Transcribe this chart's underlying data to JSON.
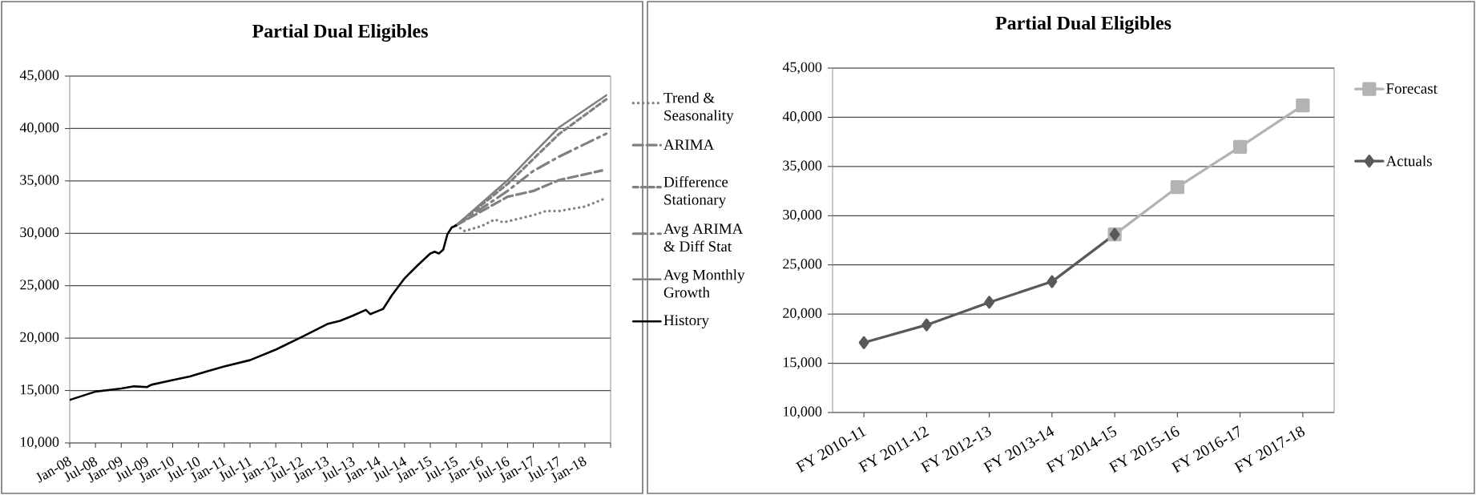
{
  "chart_data": [
    {
      "type": "line",
      "title": "Partial Dual Eligibles",
      "xlim": [
        "2008-01",
        "2018-07"
      ],
      "xticks": [
        {
          "value": "2008-01",
          "label": "Jan-08"
        },
        {
          "value": "2008-07",
          "label": "Jul-08"
        },
        {
          "value": "2009-01",
          "label": "Jan-09"
        },
        {
          "value": "2009-07",
          "label": "Jul-09"
        },
        {
          "value": "2010-01",
          "label": "Jan-10"
        },
        {
          "value": "2010-07",
          "label": "Jul-10"
        },
        {
          "value": "2011-01",
          "label": "Jan-11"
        },
        {
          "value": "2011-07",
          "label": "Jul-11"
        },
        {
          "value": "2012-01",
          "label": "Jan-12"
        },
        {
          "value": "2012-07",
          "label": "Jul-12"
        },
        {
          "value": "2013-01",
          "label": "Jan-13"
        },
        {
          "value": "2013-07",
          "label": "Jul-13"
        },
        {
          "value": "2014-01",
          "label": "Jan-14"
        },
        {
          "value": "2014-07",
          "label": "Jul-14"
        },
        {
          "value": "2015-01",
          "label": "Jan-15"
        },
        {
          "value": "2015-07",
          "label": "Jul-15"
        },
        {
          "value": "2016-01",
          "label": "Jan-16"
        },
        {
          "value": "2016-07",
          "label": "Jul-16"
        },
        {
          "value": "2017-01",
          "label": "Jan-17"
        },
        {
          "value": "2017-07",
          "label": "Jul-17"
        },
        {
          "value": "2018-01",
          "label": "Jan-18"
        },
        {
          "value": "2018-07",
          "label": null
        }
      ],
      "ylim": [
        10000,
        45000
      ],
      "yticks": [
        {
          "value": 10000,
          "label": "10,000"
        },
        {
          "value": 15000,
          "label": "15,000"
        },
        {
          "value": 20000,
          "label": "20,000"
        },
        {
          "value": 25000,
          "label": "25,000"
        },
        {
          "value": 30000,
          "label": "30,000"
        },
        {
          "value": 35000,
          "label": "35,000"
        },
        {
          "value": 40000,
          "label": "40,000"
        },
        {
          "value": 45000,
          "label": "45,000"
        }
      ],
      "grid": "y",
      "legend": "right",
      "series": [
        {
          "name": "Trend & Seasonality",
          "color": "#808080",
          "line_style": "dotted",
          "x": [
            "2015-07",
            "2015-09",
            "2016-01",
            "2016-04",
            "2016-06",
            "2017-01",
            "2017-04",
            "2017-07",
            "2018-01",
            "2018-06"
          ],
          "values": [
            30750,
            30220,
            30700,
            31320,
            31040,
            31730,
            32130,
            32130,
            32550,
            33370
          ]
        },
        {
          "name": "ARIMA",
          "color": "#808080",
          "line_style": "dashed",
          "x": [
            "2015-07",
            "2016-07",
            "2017-01",
            "2017-07",
            "2018-05"
          ],
          "values": [
            30750,
            33490,
            34040,
            35080,
            35990
          ]
        },
        {
          "name": "Difference Stationary",
          "color": "#808080",
          "line_style": "dashed",
          "x": [
            "2015-07",
            "2016-07",
            "2017-07",
            "2018-06"
          ],
          "values": [
            30750,
            34700,
            39480,
            42790
          ]
        },
        {
          "name": "Avg ARIMA & Diff Stat",
          "color": "#808080",
          "line_style": "dashed",
          "x": [
            "2015-07",
            "2016-07",
            "2017-01",
            "2017-07",
            "2018-06"
          ],
          "values": [
            30750,
            34040,
            35950,
            37320,
            39510
          ]
        },
        {
          "name": "Avg Monthly Growth",
          "color": "#808080",
          "line_style": "solid",
          "x": [
            "2015-07",
            "2016-07",
            "2017-01",
            "2017-07",
            "2018-06"
          ],
          "values": [
            30750,
            35060,
            37620,
            40110,
            43170
          ]
        },
        {
          "name": "History",
          "color": "#000000",
          "line_style": "solid",
          "x": [
            "2008-01",
            "2008-04",
            "2008-07",
            "2008-10",
            "2009-01",
            "2009-04",
            "2009-07",
            "2009-08",
            "2010-01",
            "2010-05",
            "2010-07",
            "2011-01",
            "2011-07",
            "2012-01",
            "2012-07",
            "2013-01",
            "2013-04",
            "2013-07",
            "2013-10",
            "2013-11",
            "2014-01",
            "2014-02",
            "2014-04",
            "2014-07",
            "2014-10",
            "2015-01",
            "2015-02",
            "2015-03",
            "2015-04",
            "2015-05",
            "2015-06",
            "2015-07"
          ],
          "values": [
            14100,
            14500,
            14900,
            15050,
            15200,
            15400,
            15330,
            15550,
            16000,
            16350,
            16600,
            17300,
            17900,
            18900,
            20100,
            21340,
            21650,
            22150,
            22700,
            22290,
            22620,
            22780,
            24060,
            25700,
            26930,
            28070,
            28240,
            28070,
            28430,
            29930,
            30560,
            30750
          ]
        }
      ]
    },
    {
      "type": "line",
      "title": "Partial Dual Eligibles",
      "categories": [
        "FY 2010-11",
        "FY 2011-12",
        "FY 2012-13",
        "FY 2013-14",
        "FY 2014-15",
        "FY 2015-16",
        "FY 2016-17",
        "FY 2017-18"
      ],
      "ylim": [
        10000,
        45000
      ],
      "yticks": [
        {
          "value": 10000,
          "label": "10,000"
        },
        {
          "value": 15000,
          "label": "15,000"
        },
        {
          "value": 20000,
          "label": "20,000"
        },
        {
          "value": 25000,
          "label": "25,000"
        },
        {
          "value": 30000,
          "label": "30,000"
        },
        {
          "value": 35000,
          "label": "35,000"
        },
        {
          "value": 40000,
          "label": "40,000"
        },
        {
          "value": 45000,
          "label": "45,000"
        }
      ],
      "grid": "y",
      "legend": "right",
      "series": [
        {
          "name": "Forecast",
          "color": "#b3b3b3",
          "marker": "square",
          "values": [
            null,
            null,
            null,
            null,
            28100,
            32900,
            37000,
            41200
          ]
        },
        {
          "name": "Actuals",
          "color": "#595959",
          "marker": "diamond",
          "values": [
            17100,
            18900,
            21200,
            23300,
            28100,
            null,
            null,
            null
          ]
        }
      ]
    }
  ]
}
